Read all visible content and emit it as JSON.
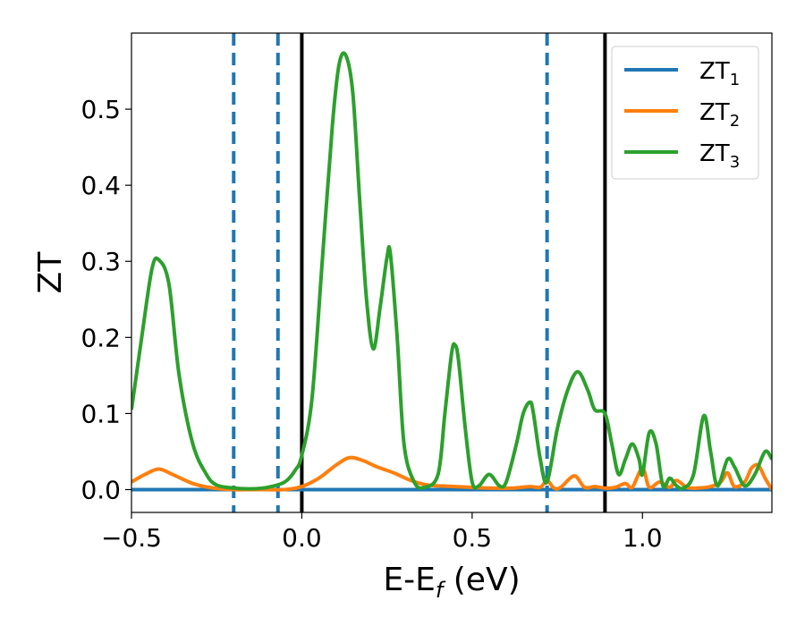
{
  "chart_data": {
    "type": "line",
    "title": "",
    "xlabel": "E-E",
    "xlabel_sub": "f",
    "xlabel_unit": " (eV)",
    "ylabel": "ZT",
    "xlim": [
      -0.5,
      1.38
    ],
    "ylim": [
      -0.03,
      0.6
    ],
    "xticks": [
      -0.5,
      0.0,
      0.5,
      1.0
    ],
    "xtick_labels": [
      "−0.5",
      "0.0",
      "0.5",
      "1.0"
    ],
    "yticks": [
      0.0,
      0.1,
      0.2,
      0.3,
      0.4,
      0.5
    ],
    "ytick_labels": [
      "0.0",
      "0.1",
      "0.2",
      "0.3",
      "0.4",
      "0.5"
    ],
    "grid": false,
    "legend_position": "top-right",
    "vlines_dashed": [
      -0.2,
      -0.07,
      0.72
    ],
    "vlines_solid": [
      0.0,
      0.89
    ],
    "vline_dashed_color": "#1f77b4",
    "vline_solid_color": "#000000",
    "series": [
      {
        "name": "ZT",
        "name_sub": "1",
        "color": "#1f77b4",
        "x": [
          -0.5,
          1.38
        ],
        "y": [
          0.0,
          0.0
        ]
      },
      {
        "name": "ZT",
        "name_sub": "2",
        "color": "#ff7f0e",
        "x": [
          -0.5,
          -0.46,
          -0.42,
          -0.38,
          -0.32,
          -0.26,
          -0.2,
          -0.15,
          -0.1,
          -0.05,
          0.0,
          0.05,
          0.1,
          0.14,
          0.18,
          0.22,
          0.27,
          0.32,
          0.37,
          0.45,
          0.55,
          0.62,
          0.67,
          0.7,
          0.72,
          0.74,
          0.76,
          0.8,
          0.83,
          0.86,
          0.89,
          0.92,
          0.95,
          0.97,
          1.0,
          1.02,
          1.05,
          1.08,
          1.1,
          1.13,
          1.16,
          1.2,
          1.23,
          1.25,
          1.27,
          1.3,
          1.32,
          1.34,
          1.36,
          1.38
        ],
        "y": [
          0.01,
          0.02,
          0.027,
          0.02,
          0.008,
          0.002,
          0.0,
          0.0,
          0.0,
          0.0,
          0.004,
          0.015,
          0.032,
          0.042,
          0.038,
          0.03,
          0.022,
          0.012,
          0.006,
          0.004,
          0.002,
          0.002,
          0.004,
          0.003,
          0.012,
          0.002,
          0.003,
          0.018,
          0.003,
          0.004,
          0.002,
          0.003,
          0.008,
          0.003,
          0.028,
          0.003,
          0.01,
          0.003,
          0.012,
          0.003,
          0.002,
          0.004,
          0.01,
          0.022,
          0.004,
          0.01,
          0.028,
          0.032,
          0.015,
          0.0
        ]
      },
      {
        "name": "ZT",
        "name_sub": "3",
        "color": "#2ca02c",
        "x": [
          -0.5,
          -0.47,
          -0.44,
          -0.42,
          -0.39,
          -0.36,
          -0.32,
          -0.28,
          -0.25,
          -0.2,
          -0.15,
          -0.1,
          -0.05,
          -0.02,
          0.0,
          0.03,
          0.06,
          0.09,
          0.11,
          0.13,
          0.15,
          0.17,
          0.19,
          0.21,
          0.23,
          0.25,
          0.26,
          0.28,
          0.3,
          0.33,
          0.36,
          0.4,
          0.42,
          0.44,
          0.45,
          0.46,
          0.48,
          0.5,
          0.52,
          0.55,
          0.58,
          0.6,
          0.63,
          0.65,
          0.67,
          0.68,
          0.7,
          0.72,
          0.75,
          0.78,
          0.81,
          0.84,
          0.86,
          0.89,
          0.91,
          0.93,
          0.95,
          0.97,
          0.99,
          1.0,
          1.02,
          1.04,
          1.06,
          1.08,
          1.1,
          1.12,
          1.15,
          1.18,
          1.2,
          1.22,
          1.25,
          1.27,
          1.3,
          1.33,
          1.36,
          1.38
        ],
        "y": [
          0.105,
          0.2,
          0.29,
          0.302,
          0.27,
          0.15,
          0.06,
          0.02,
          0.006,
          0.002,
          0.001,
          0.003,
          0.01,
          0.025,
          0.045,
          0.12,
          0.3,
          0.48,
          0.56,
          0.57,
          0.52,
          0.38,
          0.25,
          0.185,
          0.24,
          0.305,
          0.31,
          0.2,
          0.06,
          0.01,
          0.003,
          0.02,
          0.1,
          0.18,
          0.19,
          0.17,
          0.08,
          0.01,
          0.005,
          0.02,
          0.005,
          0.01,
          0.06,
          0.1,
          0.115,
          0.1,
          0.04,
          0.01,
          0.08,
          0.13,
          0.155,
          0.13,
          0.105,
          0.1,
          0.06,
          0.02,
          0.04,
          0.06,
          0.04,
          0.02,
          0.075,
          0.06,
          0.005,
          0.015,
          0.005,
          0.002,
          0.02,
          0.097,
          0.05,
          0.005,
          0.04,
          0.03,
          0.005,
          0.02,
          0.05,
          0.04
        ]
      }
    ]
  }
}
